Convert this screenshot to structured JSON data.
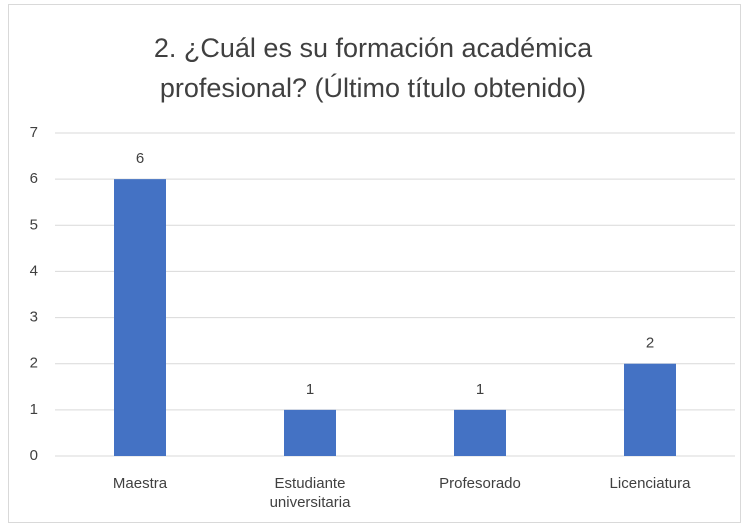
{
  "chart_data": {
    "type": "bar",
    "title": "2. ¿Cuál es su formación académica profesional? (Último título obtenido)",
    "categories": [
      "Maestra",
      "Estudiante universitaria",
      "Profesorado",
      "Licenciatura"
    ],
    "values": [
      6,
      1,
      1,
      2
    ],
    "color": "#4472c4",
    "ylim": [
      0,
      7
    ],
    "yticks": [
      0,
      1,
      2,
      3,
      4,
      5,
      6,
      7
    ],
    "grid": true
  }
}
